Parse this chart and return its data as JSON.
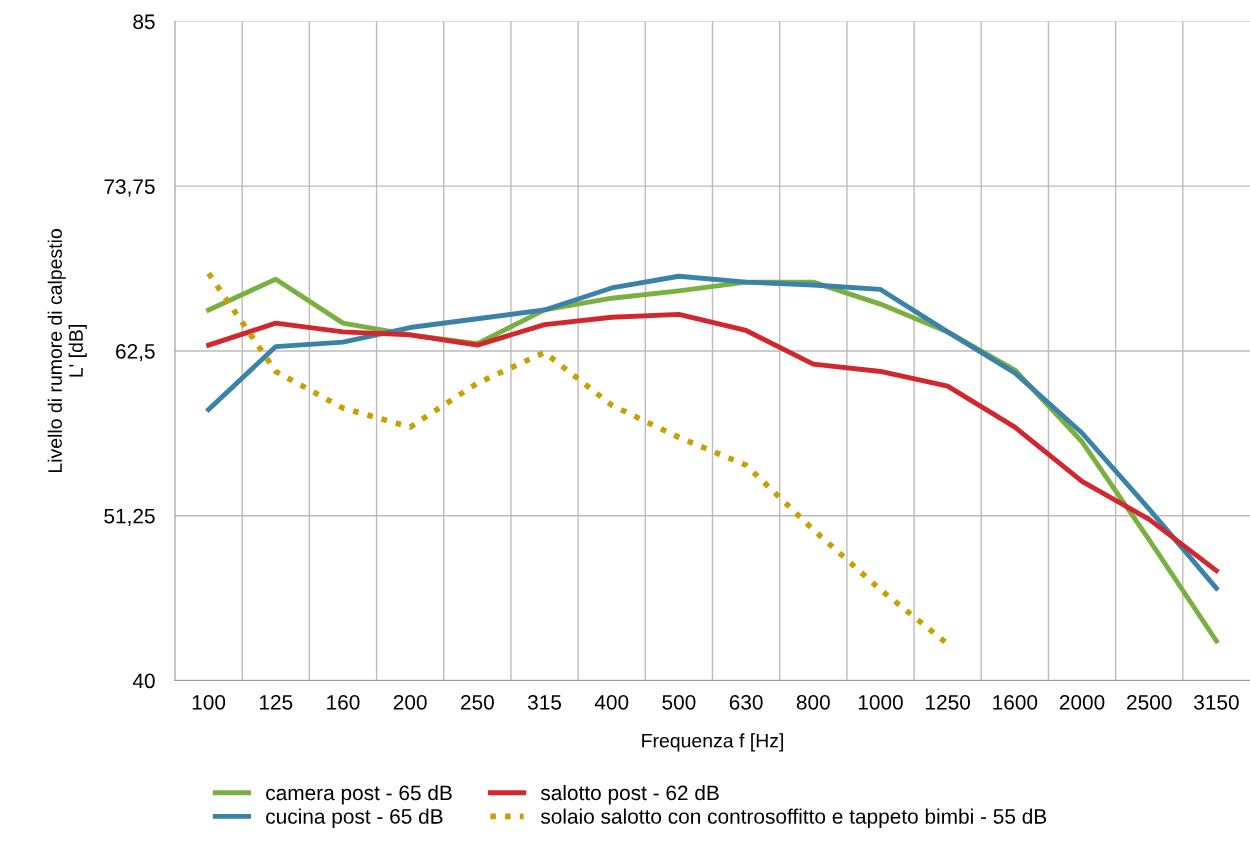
{
  "chart_data": {
    "type": "line",
    "xlabel": "Frequenza f [Hz]",
    "ylabel": "Livello di rumore di calpestio\nL' [dB]",
    "categories": [
      "100",
      "125",
      "160",
      "200",
      "250",
      "315",
      "400",
      "500",
      "630",
      "800",
      "1000",
      "1250",
      "1600",
      "2000",
      "2500",
      "3150"
    ],
    "ylim": [
      40,
      85
    ],
    "yticks": [
      40,
      {
        "value": 51.25,
        "label": "51,25"
      },
      {
        "value": 62.5,
        "label": "62,5"
      },
      {
        "value": 73.75,
        "label": "73,75"
      },
      85
    ],
    "grid": true,
    "legend": "bottom",
    "marker": "none",
    "series": [
      {
        "name": "camera post - 65 dB",
        "color": "#7ab03f",
        "line_style": "solid",
        "values": [
          65.3,
          67.4,
          64.4,
          63.6,
          63.0,
          65.3,
          66.1,
          66.6,
          67.2,
          67.2,
          65.7,
          63.8,
          61.2,
          56.3,
          49.6,
          42.7
        ]
      },
      {
        "name": "cucina post - 65 dB",
        "color": "#3a82a8",
        "line_style": "solid",
        "values": [
          58.5,
          62.8,
          63.1,
          64.1,
          64.7,
          65.3,
          66.8,
          67.6,
          67.2,
          67.0,
          66.7,
          63.8,
          61.0,
          56.9,
          51.7,
          46.3
        ]
      },
      {
        "name": "salotto post - 62 dB",
        "color": "#d3272f",
        "line_style": "solid",
        "values": [
          62.9,
          64.4,
          63.8,
          63.6,
          62.9,
          64.3,
          64.8,
          65.0,
          63.9,
          61.6,
          61.1,
          60.1,
          57.3,
          53.6,
          51.0,
          47.5
        ]
      },
      {
        "name": "solaio salotto con controsoffitto e tappeto bimbi - 55 dB",
        "color": "#c9a000",
        "line_style": "dotted",
        "values": [
          67.8,
          61.1,
          58.6,
          57.3,
          60.3,
          62.4,
          58.8,
          56.6,
          54.7,
          50.3,
          46.2,
          42.5,
          null,
          null,
          null,
          null
        ]
      }
    ]
  }
}
